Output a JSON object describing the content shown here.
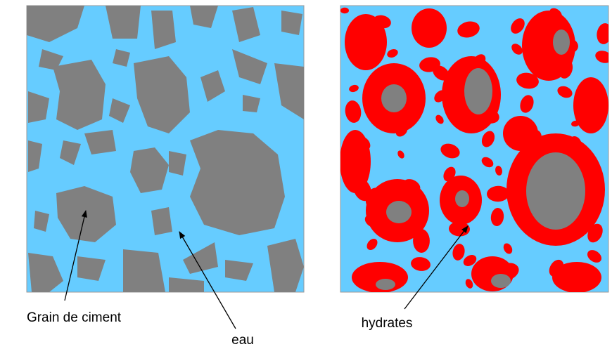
{
  "labels": {
    "grain": "Grain de ciment",
    "water": "eau",
    "hydrates": "hydrates"
  }
}
